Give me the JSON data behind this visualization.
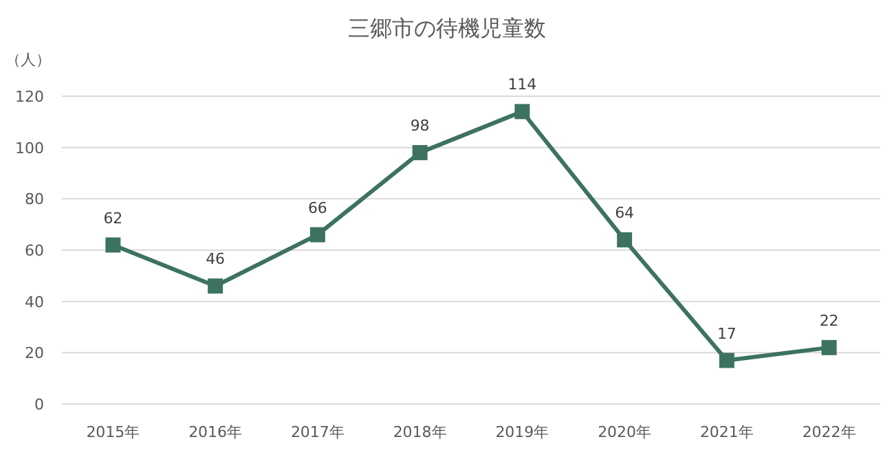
{
  "chart_data": {
    "type": "line",
    "title": "三郷市の待機児童数",
    "ylabel": "（人）",
    "categories": [
      "2015年",
      "2016年",
      "2017年",
      "2018年",
      "2019年",
      "2020年",
      "2021年",
      "2022年"
    ],
    "series": [
      {
        "color": "#3d7262",
        "values": [
          62,
          46,
          66,
          98,
          114,
          64,
          17,
          22
        ]
      }
    ],
    "ylim": [
      0,
      120
    ],
    "yticks": [
      0,
      20,
      40,
      60,
      80,
      100,
      120
    ],
    "grid": "y",
    "marker": "square",
    "data_labels": true
  }
}
